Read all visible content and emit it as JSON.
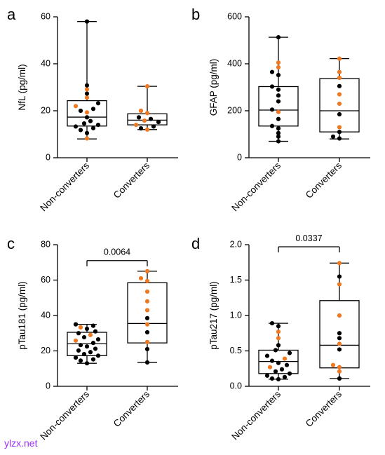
{
  "watermark": "ylzx.net",
  "colors": {
    "non_converter_point": "#000000",
    "converter_point": "#f07820",
    "box": "#000000"
  },
  "chart_data": [
    {
      "panel": "a",
      "type": "box",
      "ylabel": "NfL (pg/ml)",
      "ylim": [
        0,
        60
      ],
      "yticks": [
        "0",
        "20",
        "40",
        "60"
      ],
      "categories": [
        "Non-converters",
        "Converters"
      ],
      "boxes": [
        {
          "min": 8,
          "q1": 13.5,
          "median": 17.3,
          "q3": 24.3,
          "max": 58
        },
        {
          "min": 12,
          "q1": 14,
          "median": 16,
          "q3": 18.7,
          "max": 30.4
        }
      ],
      "points": [
        [
          {
            "v": 58,
            "c": "k"
          },
          {
            "v": 30.8,
            "c": "k"
          },
          {
            "v": 29.1,
            "c": "o"
          },
          {
            "v": 27.3,
            "c": "k"
          },
          {
            "v": 25.6,
            "c": "o"
          },
          {
            "v": 23.2,
            "c": "k"
          },
          {
            "v": 22,
            "c": "o"
          },
          {
            "v": 20.8,
            "c": "k"
          },
          {
            "v": 20,
            "c": "k"
          },
          {
            "v": 19.3,
            "c": "o"
          },
          {
            "v": 17.2,
            "c": "k"
          },
          {
            "v": 15.6,
            "c": "k"
          },
          {
            "v": 14.6,
            "c": "k"
          },
          {
            "v": 14,
            "c": "k"
          },
          {
            "v": 13.3,
            "c": "k"
          },
          {
            "v": 12.6,
            "c": "k"
          },
          {
            "v": 11.8,
            "c": "k"
          },
          {
            "v": 10.5,
            "c": "k"
          },
          {
            "v": 8.2,
            "c": "o"
          }
        ],
        [
          {
            "v": 30.4,
            "c": "o"
          },
          {
            "v": 20,
            "c": "o"
          },
          {
            "v": 19,
            "c": "o"
          },
          {
            "v": 17.2,
            "c": "k"
          },
          {
            "v": 16.5,
            "c": "k"
          },
          {
            "v": 15.8,
            "c": "o"
          },
          {
            "v": 15.2,
            "c": "k"
          },
          {
            "v": 14,
            "c": "o"
          },
          {
            "v": 13.3,
            "c": "k"
          },
          {
            "v": 12.5,
            "c": "k"
          },
          {
            "v": 12,
            "c": "o"
          }
        ]
      ],
      "comparison": null
    },
    {
      "panel": "b",
      "type": "box",
      "ylabel": "GFAP (pg/ml)",
      "ylim": [
        0,
        600
      ],
      "yticks": [
        "0",
        "200",
        "400",
        "600"
      ],
      "categories": [
        "Non-converters",
        "Converters"
      ],
      "boxes": [
        {
          "min": 70,
          "q1": 135,
          "median": 203,
          "q3": 303,
          "max": 513
        },
        {
          "min": 80,
          "q1": 110,
          "median": 200,
          "q3": 337,
          "max": 422
        }
      ],
      "points": [
        [
          {
            "v": 513,
            "c": "k"
          },
          {
            "v": 405,
            "c": "o"
          },
          {
            "v": 385,
            "c": "o"
          },
          {
            "v": 365,
            "c": "k"
          },
          {
            "v": 352,
            "c": "k"
          },
          {
            "v": 303,
            "c": "k"
          },
          {
            "v": 290,
            "c": "k"
          },
          {
            "v": 265,
            "c": "k"
          },
          {
            "v": 240,
            "c": "k"
          },
          {
            "v": 205,
            "c": "k"
          },
          {
            "v": 195,
            "c": "o"
          },
          {
            "v": 165,
            "c": "k"
          },
          {
            "v": 135,
            "c": "k"
          },
          {
            "v": 125,
            "c": "k"
          },
          {
            "v": 105,
            "c": "k"
          },
          {
            "v": 90,
            "c": "k"
          },
          {
            "v": 70,
            "c": "k"
          }
        ],
        [
          {
            "v": 422,
            "c": "o"
          },
          {
            "v": 365,
            "c": "o"
          },
          {
            "v": 340,
            "c": "o"
          },
          {
            "v": 305,
            "c": "k"
          },
          {
            "v": 270,
            "c": "o"
          },
          {
            "v": 230,
            "c": "o"
          },
          {
            "v": 185,
            "c": "k"
          },
          {
            "v": 130,
            "c": "o"
          },
          {
            "v": 110,
            "c": "k"
          },
          {
            "v": 90,
            "c": "k"
          },
          {
            "v": 82,
            "c": "k"
          }
        ]
      ],
      "comparison": null
    },
    {
      "panel": "c",
      "type": "box",
      "ylabel": "pTau181 (pg/ml)",
      "ylim": [
        0,
        80
      ],
      "yticks": [
        "0",
        "20",
        "40",
        "60",
        "80"
      ],
      "categories": [
        "Non-converters",
        "Converters"
      ],
      "boxes": [
        {
          "min": 13,
          "q1": 17.3,
          "median": 24,
          "q3": 30.5,
          "max": 35
        },
        {
          "min": 13.5,
          "q1": 24.5,
          "median": 35.5,
          "q3": 58.5,
          "max": 65
        }
      ],
      "points": [
        [
          {
            "v": 35,
            "c": "k"
          },
          {
            "v": 34.2,
            "c": "k"
          },
          {
            "v": 33.3,
            "c": "o"
          },
          {
            "v": 32.5,
            "c": "k"
          },
          {
            "v": 31,
            "c": "k"
          },
          {
            "v": 30,
            "c": "k"
          },
          {
            "v": 29,
            "c": "o"
          },
          {
            "v": 27.7,
            "c": "k"
          },
          {
            "v": 26.5,
            "c": "k"
          },
          {
            "v": 25.8,
            "c": "o"
          },
          {
            "v": 24.5,
            "c": "k"
          },
          {
            "v": 23.3,
            "c": "k"
          },
          {
            "v": 22.5,
            "c": "k"
          },
          {
            "v": 21.2,
            "c": "k"
          },
          {
            "v": 20.2,
            "c": "k"
          },
          {
            "v": 19.3,
            "c": "k"
          },
          {
            "v": 18.2,
            "c": "k"
          },
          {
            "v": 17.3,
            "c": "k"
          },
          {
            "v": 16.2,
            "c": "k"
          },
          {
            "v": 15.2,
            "c": "k"
          },
          {
            "v": 14.5,
            "c": "k"
          },
          {
            "v": 13,
            "c": "k"
          }
        ],
        [
          {
            "v": 65,
            "c": "o"
          },
          {
            "v": 61,
            "c": "o"
          },
          {
            "v": 59.5,
            "c": "o"
          },
          {
            "v": 53.5,
            "c": "o"
          },
          {
            "v": 48,
            "c": "o"
          },
          {
            "v": 43,
            "c": "o"
          },
          {
            "v": 38.5,
            "c": "k"
          },
          {
            "v": 35,
            "c": "o"
          },
          {
            "v": 30.5,
            "c": "k"
          },
          {
            "v": 25,
            "c": "o"
          },
          {
            "v": 21,
            "c": "k"
          },
          {
            "v": 13.5,
            "c": "k"
          }
        ]
      ],
      "comparison": {
        "label": "0.0064",
        "value": 71
      }
    },
    {
      "panel": "d",
      "type": "box",
      "ylabel": "pTau217 (pg/ml)",
      "ylim": [
        0,
        2.0
      ],
      "yticks": [
        "0.0",
        "0.5",
        "1.0",
        "1.5",
        "2.0"
      ],
      "categories": [
        "Non-converters",
        "Converters"
      ],
      "boxes": [
        {
          "min": 0.1,
          "q1": 0.18,
          "median": 0.35,
          "q3": 0.51,
          "max": 0.89
        },
        {
          "min": 0.11,
          "q1": 0.26,
          "median": 0.58,
          "q3": 1.21,
          "max": 1.74
        }
      ],
      "points": [
        [
          {
            "v": 0.89,
            "c": "k"
          },
          {
            "v": 0.85,
            "c": "k"
          },
          {
            "v": 0.77,
            "c": "o"
          },
          {
            "v": 0.68,
            "c": "o"
          },
          {
            "v": 0.58,
            "c": "k"
          },
          {
            "v": 0.51,
            "c": "k"
          },
          {
            "v": 0.47,
            "c": "k"
          },
          {
            "v": 0.43,
            "c": "k"
          },
          {
            "v": 0.39,
            "c": "o"
          },
          {
            "v": 0.36,
            "c": "k"
          },
          {
            "v": 0.33,
            "c": "k"
          },
          {
            "v": 0.3,
            "c": "k"
          },
          {
            "v": 0.27,
            "c": "o"
          },
          {
            "v": 0.24,
            "c": "k"
          },
          {
            "v": 0.21,
            "c": "k"
          },
          {
            "v": 0.18,
            "c": "k"
          },
          {
            "v": 0.15,
            "c": "k"
          },
          {
            "v": 0.13,
            "c": "k"
          },
          {
            "v": 0.11,
            "c": "k"
          },
          {
            "v": 0.1,
            "c": "k"
          }
        ],
        [
          {
            "v": 1.74,
            "c": "o"
          },
          {
            "v": 1.55,
            "c": "k"
          },
          {
            "v": 1.44,
            "c": "o"
          },
          {
            "v": 1.0,
            "c": "o"
          },
          {
            "v": 0.75,
            "c": "k"
          },
          {
            "v": 0.68,
            "c": "k"
          },
          {
            "v": 0.6,
            "c": "o"
          },
          {
            "v": 0.52,
            "c": "k"
          },
          {
            "v": 0.3,
            "c": "o"
          },
          {
            "v": 0.27,
            "c": "o"
          },
          {
            "v": 0.21,
            "c": "o"
          },
          {
            "v": 0.11,
            "c": "k"
          }
        ]
      ],
      "comparison": {
        "label": "0.0337",
        "value": 1.97
      }
    }
  ]
}
